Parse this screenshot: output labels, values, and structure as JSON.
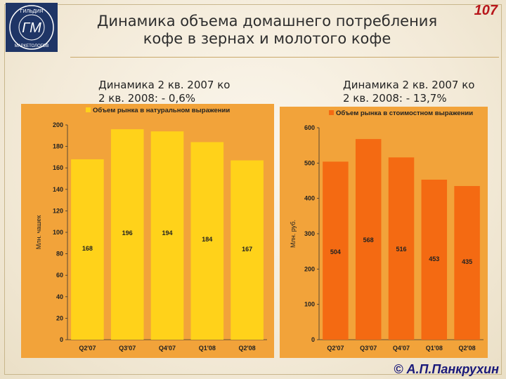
{
  "slide": {
    "title_line1": "Динамика объема домашнего потребления",
    "title_line2": "кофе в зернах и молотого кофе",
    "slide_number": "107",
    "copyright": "© А.П.Панкрухин",
    "logo_text_top": "ГИЛЬДИЯ",
    "logo_text_bottom": "МАРКЕТОЛОГОВ",
    "logo_monogram": "ГМ"
  },
  "left_note": {
    "line1": "Динамика 2 кв. 2007 ко",
    "line2": "2 кв. 2008: - 0,6%"
  },
  "right_note": {
    "line1": "Динамика 2 кв. 2007 ко",
    "line2": "2 кв. 2008: - 13,7%"
  },
  "chart_data": [
    {
      "type": "bar",
      "title": "Объем рынка в натуральном выражении",
      "ylabel": "Млн. чашек",
      "categories": [
        "Q2'07",
        "Q3'07",
        "Q4'07",
        "Q1'08",
        "Q2'08"
      ],
      "values": [
        168,
        196,
        194,
        184,
        167
      ],
      "ylim": [
        0,
        200
      ],
      "yticks": [
        0,
        20,
        40,
        60,
        80,
        100,
        120,
        140,
        160,
        180,
        200
      ],
      "bar_color": "#ffd21a",
      "legend_color": "#ffd21a",
      "grid": false
    },
    {
      "type": "bar",
      "title": "Объем рынка в стоимостном выражении",
      "ylabel": "Млн. руб.",
      "categories": [
        "Q2'07",
        "Q3'07",
        "Q4'07",
        "Q1'08",
        "Q2'08"
      ],
      "values": [
        504,
        568,
        516,
        453,
        435
      ],
      "ylim": [
        0,
        600
      ],
      "yticks": [
        0,
        100,
        200,
        300,
        400,
        500,
        600
      ],
      "bar_color": "#f46a12",
      "legend_color": "#f46a12",
      "grid": false
    }
  ]
}
